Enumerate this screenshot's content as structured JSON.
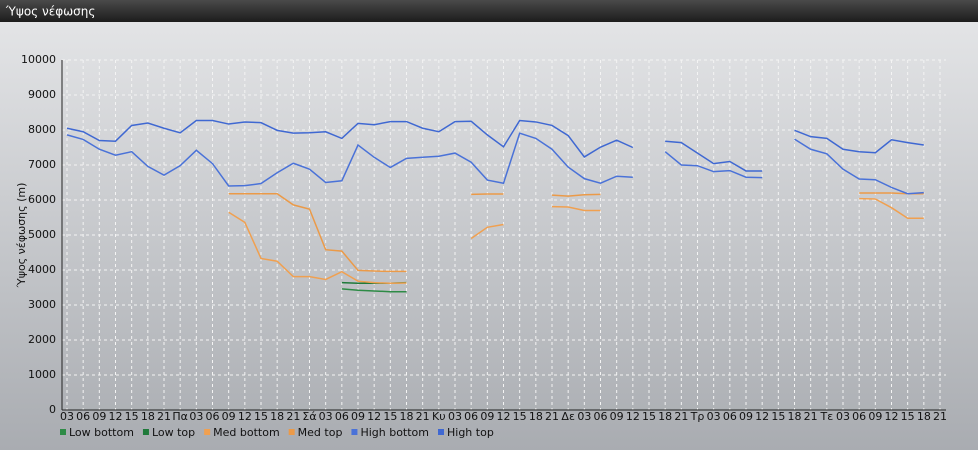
{
  "chart_data": {
    "type": "line",
    "title": "Ύψος νέφωσης",
    "y_label": "Ύψος νέφωσης (m)",
    "categories": [
      "03",
      "06",
      "09",
      "12",
      "15",
      "18",
      "21",
      "Πα",
      "03",
      "06",
      "09",
      "12",
      "15",
      "18",
      "21",
      "Σά",
      "03",
      "06",
      "09",
      "12",
      "15",
      "18",
      "21",
      "Κυ",
      "03",
      "06",
      "09",
      "12",
      "15",
      "18",
      "21",
      "Δε",
      "03",
      "06",
      "09",
      "12",
      "15",
      "18",
      "21",
      "Τρ",
      "03",
      "06",
      "09",
      "12",
      "15",
      "18",
      "21",
      "Τε",
      "03",
      "06",
      "09",
      "12",
      "15",
      "18",
      "21"
    ],
    "ylim": [
      0,
      10000
    ],
    "yticks": [
      0,
      1000,
      2000,
      3000,
      4000,
      5000,
      6000,
      7000,
      8000,
      9000,
      10000
    ],
    "grid": true,
    "series": [
      {
        "name": "Low bottom",
        "color": "#2e8b46",
        "values": [
          null,
          null,
          null,
          null,
          null,
          null,
          null,
          null,
          null,
          null,
          null,
          null,
          null,
          null,
          null,
          null,
          null,
          3460,
          3420,
          3400,
          3380,
          3380,
          null,
          null,
          null,
          null,
          null,
          null,
          null,
          null,
          null,
          null,
          null,
          null,
          null,
          null,
          null,
          null,
          null,
          null,
          null,
          null,
          null,
          null,
          null,
          null,
          null,
          null,
          null,
          null,
          null,
          null,
          null,
          null,
          null
        ]
      },
      {
        "name": "Low top",
        "color": "#1f7a3a",
        "values": [
          null,
          null,
          null,
          null,
          null,
          null,
          null,
          null,
          null,
          null,
          null,
          null,
          null,
          null,
          null,
          null,
          null,
          3640,
          3620,
          3620,
          3620,
          3640,
          null,
          null,
          null,
          null,
          null,
          null,
          null,
          null,
          null,
          null,
          null,
          null,
          null,
          null,
          null,
          null,
          null,
          null,
          null,
          null,
          null,
          null,
          null,
          null,
          null,
          null,
          null,
          null,
          null,
          null,
          null,
          null,
          null
        ]
      },
      {
        "name": "Med bottom",
        "color": "#f0a050",
        "values": [
          null,
          null,
          null,
          null,
          null,
          null,
          null,
          null,
          null,
          null,
          5650,
          5360,
          4330,
          4250,
          3810,
          3810,
          3730,
          3950,
          3680,
          3640,
          3620,
          3630,
          null,
          null,
          null,
          4900,
          5220,
          5300,
          null,
          null,
          5810,
          5800,
          5700,
          5700,
          null,
          null,
          null,
          null,
          null,
          null,
          null,
          null,
          null,
          null,
          null,
          null,
          null,
          null,
          null,
          6040,
          6030,
          5780,
          5480,
          5480,
          null
        ]
      },
      {
        "name": "Med top",
        "color": "#eb9a48",
        "values": [
          null,
          null,
          null,
          null,
          null,
          null,
          null,
          null,
          null,
          null,
          6180,
          6180,
          6180,
          6180,
          5860,
          5740,
          4580,
          4540,
          3990,
          3970,
          3960,
          3960,
          null,
          null,
          null,
          6160,
          6170,
          6170,
          null,
          null,
          6140,
          6110,
          6150,
          6160,
          null,
          null,
          null,
          null,
          null,
          null,
          null,
          null,
          null,
          null,
          null,
          null,
          null,
          null,
          null,
          6200,
          6200,
          6200,
          6180,
          6180,
          null
        ]
      },
      {
        "name": "High bottom",
        "color": "#4a72d8",
        "values": [
          7860,
          7730,
          7450,
          7280,
          7380,
          6960,
          6710,
          6980,
          7420,
          7040,
          6400,
          6410,
          6470,
          6780,
          7050,
          6880,
          6500,
          6550,
          7570,
          7220,
          6930,
          7190,
          7220,
          7250,
          7340,
          7080,
          6570,
          6480,
          7910,
          7760,
          7450,
          6940,
          6610,
          6480,
          6680,
          6650,
          null,
          7380,
          7000,
          6980,
          6810,
          6840,
          6650,
          6640,
          null,
          7740,
          7450,
          7320,
          6880,
          6600,
          6580,
          6360,
          6180,
          6210,
          null
        ]
      },
      {
        "name": "High top",
        "color": "#3f68d2",
        "values": [
          8050,
          7950,
          7700,
          7680,
          8130,
          8200,
          8050,
          7920,
          8270,
          8270,
          8170,
          8230,
          8210,
          7990,
          7910,
          7920,
          7950,
          7760,
          8190,
          8150,
          8240,
          8240,
          8050,
          7950,
          8240,
          8250,
          7860,
          7520,
          8270,
          8230,
          8130,
          7840,
          7230,
          7510,
          7710,
          7500,
          null,
          7680,
          7640,
          7340,
          7040,
          7100,
          6830,
          6830,
          null,
          7990,
          7810,
          7760,
          7450,
          7380,
          7350,
          7720,
          7640,
          7570,
          null
        ]
      }
    ]
  }
}
